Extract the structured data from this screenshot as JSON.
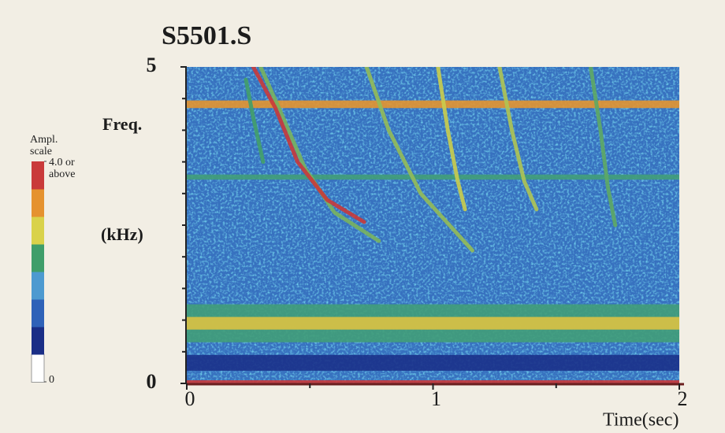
{
  "chart_data": {
    "type": "spectrogram",
    "title": "S5501.S",
    "y_label_top": "Freq.",
    "y_label_unit": "(kHz)",
    "x_label": "Time(sec)",
    "xlim": [
      0,
      2
    ],
    "xticks": [
      0,
      1,
      2
    ],
    "x_minor_ticks": [
      0.5,
      1.5
    ],
    "ylim": [
      0,
      5
    ],
    "yticks": [
      0,
      5
    ],
    "y_minor_ticks": [
      0.5,
      1,
      1.5,
      2,
      2.5,
      3,
      3.5,
      4,
      4.5
    ],
    "colorbar": {
      "title": "Ampl. scale",
      "lim": [
        0,
        4
      ],
      "ticks": [
        0,
        {
          "value": 4,
          "label": "4.0 or above"
        }
      ],
      "colors": [
        "#ffffff",
        "#1a2e86",
        "#2f62b8",
        "#4d9ad0",
        "#3f9e6a",
        "#d9d24a",
        "#e5922f",
        "#c93a3a"
      ]
    },
    "background_amplitude": 1.3,
    "bands": [
      {
        "range": [
          0.2,
          0.45
        ],
        "amplitude": 0.6
      },
      {
        "range": [
          0.65,
          1.25
        ],
        "amplitude": 2.2
      },
      {
        "range": [
          0.85,
          1.05
        ],
        "amplitude": 3.0
      },
      {
        "range": [
          3.22,
          3.3
        ],
        "amplitude": 2.2
      },
      {
        "range": [
          4.35,
          4.47
        ],
        "amplitude": 3.4
      },
      {
        "range": [
          0,
          0.05
        ],
        "amplitude": 4
      }
    ],
    "traces": [
      {
        "x": [
          0.3,
          0.38,
          0.48,
          0.6,
          0.78
        ],
        "values": [
          5,
          4.3,
          3.4,
          2.7,
          2.25
        ],
        "amplitude": 2.5
      },
      {
        "x": [
          0.27,
          0.36,
          0.45,
          0.57,
          0.72
        ],
        "values": [
          5,
          4.35,
          3.5,
          2.9,
          2.55
        ],
        "amplitude": 4
      },
      {
        "x": [
          0.24,
          0.27,
          0.31
        ],
        "values": [
          4.8,
          4.2,
          3.5
        ],
        "amplitude": 2.3
      },
      {
        "x": [
          0.73,
          0.82,
          0.95,
          1.16
        ],
        "values": [
          5,
          4.0,
          3.0,
          2.1
        ],
        "amplitude": 2.6
      },
      {
        "x": [
          1.02,
          1.06,
          1.1,
          1.13
        ],
        "values": [
          5,
          4.0,
          3.2,
          2.75
        ],
        "amplitude": 2.8
      },
      {
        "x": [
          1.27,
          1.32,
          1.37,
          1.42
        ],
        "values": [
          5,
          4.0,
          3.2,
          2.75
        ],
        "amplitude": 2.7
      },
      {
        "x": [
          1.64,
          1.68,
          1.71,
          1.74
        ],
        "values": [
          5,
          4.0,
          3.1,
          2.5
        ],
        "amplitude": 2.4
      }
    ]
  }
}
